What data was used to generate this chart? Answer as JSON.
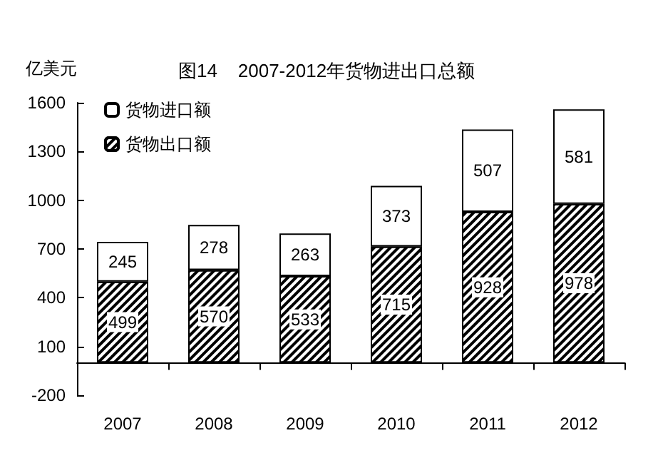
{
  "chart_data": {
    "type": "bar",
    "title": "图14    2007-2012年货物进出口总额",
    "ylabel": "亿美元",
    "categories": [
      "2007",
      "2008",
      "2009",
      "2010",
      "2011",
      "2012"
    ],
    "stacked": true,
    "data_labels": true,
    "legend": "top left",
    "grid": false,
    "series": [
      {
        "name": "货物出口额",
        "color": "#000000",
        "values": [
          499,
          570,
          533,
          715,
          928,
          978
        ]
      },
      {
        "name": "货物进口额",
        "color": "#ffffff",
        "values": [
          245,
          278,
          263,
          373,
          507,
          581
        ]
      }
    ],
    "ylim": [
      -200,
      1600
    ],
    "yticks": [
      -200,
      100,
      400,
      700,
      1000,
      1300,
      1600
    ]
  }
}
